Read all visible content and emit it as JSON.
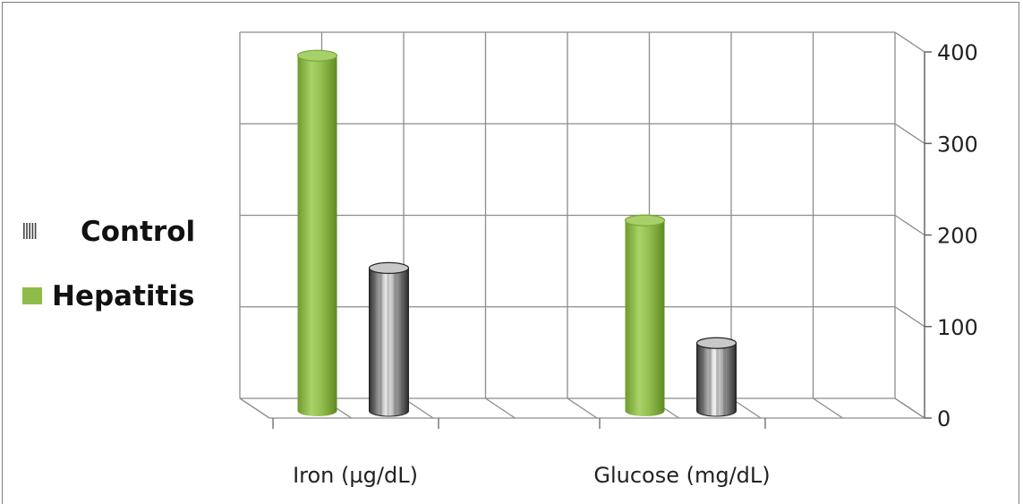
{
  "chart_data": {
    "type": "bar",
    "categories": [
      "Iron (µg/dL)",
      "Glucose (mg/dL)"
    ],
    "series": [
      {
        "name": "Hepatitis",
        "values": [
          392,
          212
        ],
        "color": "#8fbb4a"
      },
      {
        "name": "Control",
        "values": [
          160,
          78
        ],
        "color": "#8a8a8a"
      }
    ],
    "y_ticks": [
      "0",
      "100",
      "200",
      "300",
      "400"
    ],
    "ylim": [
      0,
      400
    ],
    "grid": true,
    "y_axis_side": "right",
    "legend_position": "left",
    "legend_order": [
      "Control",
      "Hepatitis"
    ]
  }
}
